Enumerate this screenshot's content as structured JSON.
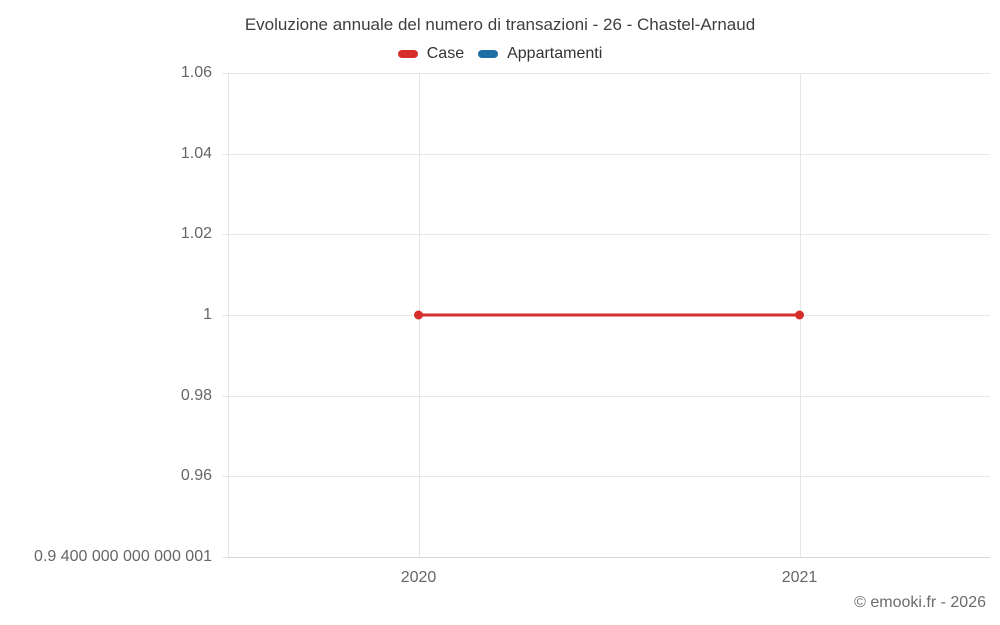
{
  "chart_data": {
    "type": "line",
    "title": "Evoluzione annuale del numero di transazioni - 26 - Chastel-Arnaud",
    "x": [
      2020,
      2021
    ],
    "series": [
      {
        "name": "Case",
        "color": "#d62f2b",
        "values": [
          1,
          1
        ],
        "visible": true
      },
      {
        "name": "Appartamenti",
        "color": "#1c6ea4",
        "values": [],
        "visible": false
      }
    ],
    "xlabel": "",
    "ylabel": "",
    "xlim": [
      2019.5,
      2021.5
    ],
    "ylim": [
      0.94,
      1.06
    ],
    "yticks": [
      {
        "value": 1.06,
        "label": "1.06"
      },
      {
        "value": 1.04,
        "label": "1.04"
      },
      {
        "value": 1.02,
        "label": "1.02"
      },
      {
        "value": 1.0,
        "label": "1"
      },
      {
        "value": 0.98,
        "label": "0.98"
      },
      {
        "value": 0.96,
        "label": "0.96"
      },
      {
        "value": 0.94,
        "label": "0.9 400 000 000 000 001"
      }
    ],
    "xticks": [
      {
        "value": 2020,
        "label": "2020"
      },
      {
        "value": 2021,
        "label": "2021"
      }
    ],
    "grid": true,
    "legend_position": "top",
    "colors": {
      "grid": "#e6e6e6",
      "axis": "#d6d6d6",
      "tick_text": "#666666",
      "title_text": "#3f3f3f",
      "legend_text": "#333333"
    }
  },
  "attribution": "© emooki.fr - 2026"
}
